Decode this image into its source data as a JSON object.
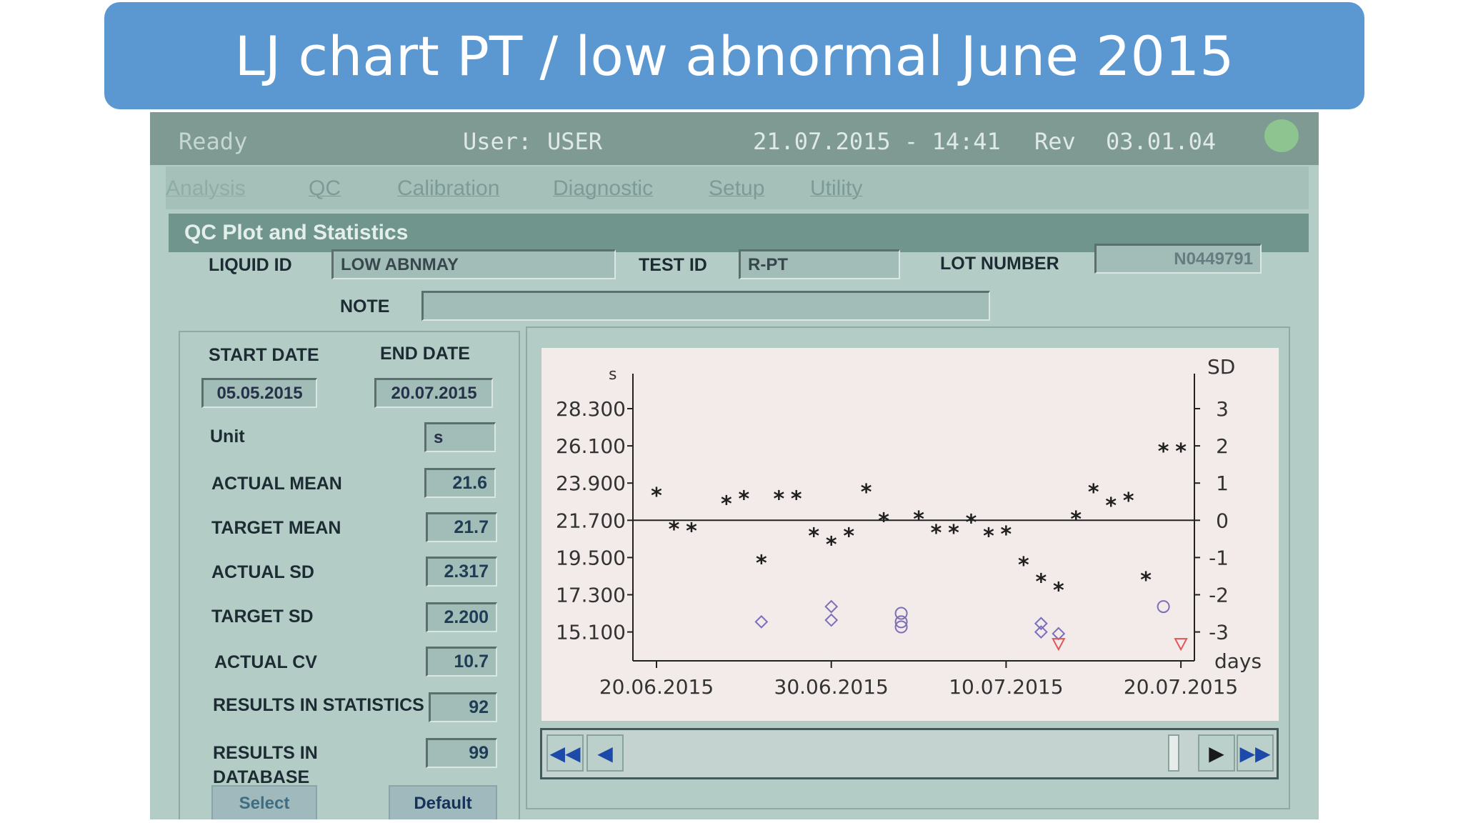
{
  "slide": {
    "title": "LJ chart PT / low abnormal June 2015"
  },
  "status": {
    "state": "Ready",
    "user_label": "User:",
    "user": "USER",
    "datetime": "21.07.2015 - 14:41",
    "rev_label": "Rev",
    "rev": "03.01.04"
  },
  "menu": {
    "items": [
      "Analysis",
      "QC",
      "Calibration",
      "Diagnostic",
      "Setup",
      "Utility"
    ]
  },
  "section": {
    "title": "QC Plot and Statistics"
  },
  "form": {
    "liquid_id_label": "LIQUID ID",
    "liquid_id": "LOW ABNMAY",
    "test_id_label": "TEST ID",
    "test_id": "R-PT",
    "lot_label": "LOT NUMBER",
    "lot": "N0449791",
    "note_label": "NOTE",
    "note": ""
  },
  "stats": {
    "start_label": "START DATE",
    "start": "05.05.2015",
    "end_label": "END DATE",
    "end": "20.07.2015",
    "unit_label": "Unit",
    "unit": "s",
    "actual_mean_label": "ACTUAL MEAN",
    "actual_mean": "21.6",
    "target_mean_label": "TARGET MEAN",
    "target_mean": "21.7",
    "actual_sd_label": "ACTUAL SD",
    "actual_sd": "2.317",
    "target_sd_label": "TARGET SD",
    "target_sd": "2.200",
    "actual_cv_label": "ACTUAL CV",
    "actual_cv": "10.7",
    "results_stats_label": "RESULTS IN STATISTICS",
    "results_stats": "92",
    "results_db_label": "RESULTS IN DATABASE",
    "results_db": "99"
  },
  "buttons": {
    "select": "Select",
    "default": "Default"
  },
  "nav": {
    "first": "first-icon",
    "prev": "prev-icon",
    "next": "next-icon",
    "last": "last-icon"
  },
  "chart_data": {
    "type": "scatter",
    "title": "",
    "ylabel": "s",
    "y2label": "SD",
    "xlabel": "days",
    "ylim": [
      15.1,
      28.3
    ],
    "y_ticks": [
      "28.300",
      "26.100",
      "23.900",
      "21.700",
      "19.500",
      "17.300",
      "15.100"
    ],
    "y2_ticks": [
      "3",
      "2",
      "1",
      "0",
      "-1",
      "-2",
      "-3"
    ],
    "x_ticks": [
      "20.06.2015",
      "30.06.2015",
      "10.07.2015",
      "20.07.2015"
    ],
    "x_tick_dates": [
      "2015-06-20",
      "2015-06-30",
      "2015-07-10",
      "2015-07-20"
    ],
    "grid": false,
    "reference_line": 21.7,
    "series": [
      {
        "marker": "star",
        "color": "#202020",
        "points": [
          [
            "2015-06-20",
            23.2
          ],
          [
            "2015-06-21",
            21.2
          ],
          [
            "2015-06-22",
            21.1
          ],
          [
            "2015-06-24",
            22.7
          ],
          [
            "2015-06-25",
            23.0
          ],
          [
            "2015-06-26",
            19.2
          ],
          [
            "2015-06-27",
            23.0
          ],
          [
            "2015-06-28",
            23.0
          ],
          [
            "2015-06-29",
            20.8
          ],
          [
            "2015-06-30",
            20.3
          ],
          [
            "2015-07-01",
            20.8
          ],
          [
            "2015-07-02",
            23.4
          ],
          [
            "2015-07-03",
            21.7
          ],
          [
            "2015-07-05",
            21.8
          ],
          [
            "2015-07-06",
            21.0
          ],
          [
            "2015-07-07",
            21.0
          ],
          [
            "2015-07-08",
            21.6
          ],
          [
            "2015-07-09",
            20.8
          ],
          [
            "2015-07-10",
            20.9
          ],
          [
            "2015-07-11",
            19.1
          ],
          [
            "2015-07-12",
            18.1
          ],
          [
            "2015-07-13",
            17.6
          ],
          [
            "2015-07-14",
            21.8
          ],
          [
            "2015-07-15",
            23.4
          ],
          [
            "2015-07-16",
            22.6
          ],
          [
            "2015-07-17",
            22.9
          ],
          [
            "2015-07-18",
            18.2
          ],
          [
            "2015-07-19",
            25.8
          ],
          [
            "2015-07-20",
            25.8
          ]
        ]
      },
      {
        "marker": "diamond",
        "color": "#7b6fb8",
        "points": [
          [
            "2015-06-26",
            15.7
          ],
          [
            "2015-06-30",
            16.6
          ],
          [
            "2015-06-30",
            15.8
          ],
          [
            "2015-07-12",
            15.6
          ],
          [
            "2015-07-12",
            15.1
          ],
          [
            "2015-07-13",
            15.0
          ]
        ]
      },
      {
        "marker": "circle",
        "color": "#7b6fb8",
        "points": [
          [
            "2015-07-04",
            16.2
          ],
          [
            "2015-07-04",
            15.7
          ],
          [
            "2015-07-04",
            15.4
          ],
          [
            "2015-07-19",
            16.6
          ]
        ]
      },
      {
        "marker": "triangle",
        "color": "#e05555",
        "points": [
          [
            "2015-07-13",
            14.4
          ],
          [
            "2015-07-20",
            14.4
          ]
        ]
      }
    ]
  }
}
